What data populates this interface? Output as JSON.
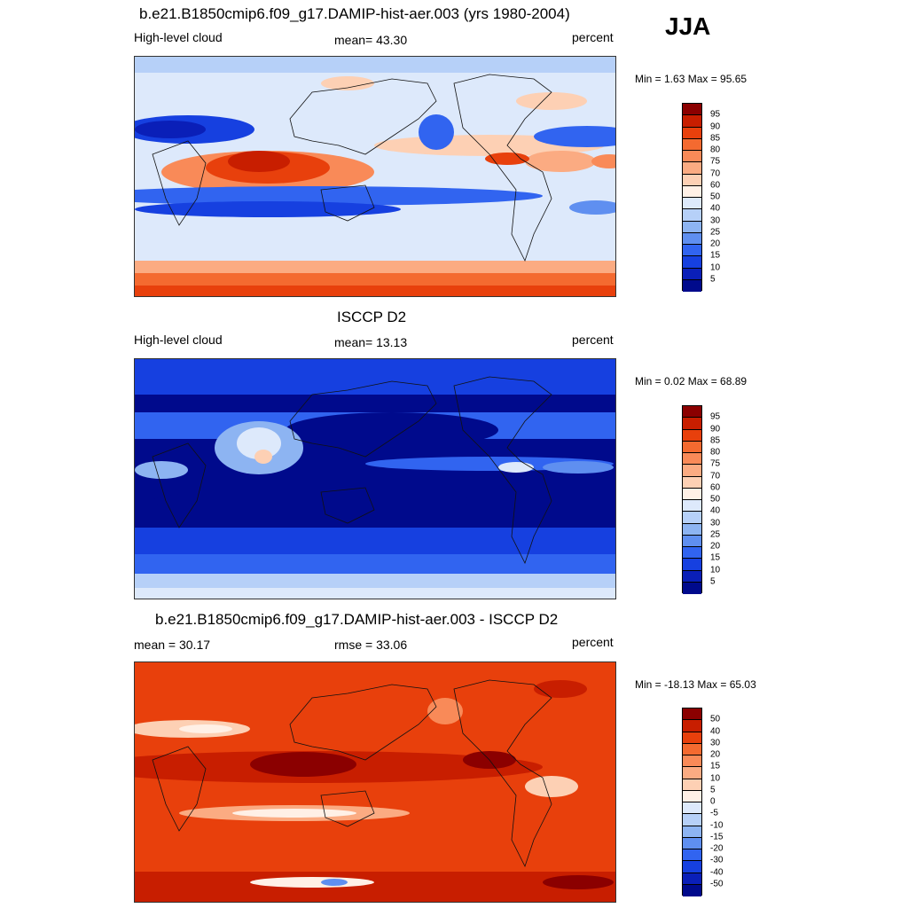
{
  "season": "JJA",
  "panels": [
    {
      "title": "b.e21.B1850cmip6.f09_g17.DAMIP-hist-aer.003 (yrs 1980-2004)",
      "left_label": "High-level cloud",
      "center_label": "mean=  43.30",
      "right_label": "percent",
      "minmax": "Min =   1.63 Max =  95.65",
      "colorbar": {
        "labels": [
          "95",
          "90",
          "85",
          "80",
          "75",
          "70",
          "60",
          "50",
          "40",
          "30",
          "25",
          "20",
          "15",
          "10",
          "5"
        ],
        "colors": [
          "#8b0000",
          "#c81e00",
          "#e8400c",
          "#f46a30",
          "#f98a58",
          "#fbab82",
          "#fdd0b4",
          "#fff0e6",
          "#dde9fb",
          "#b6d0f8",
          "#8db4f2",
          "#5f8ff0",
          "#3164f0",
          "#1640e0",
          "#0a1fb8",
          "#000a8c"
        ]
      }
    },
    {
      "title": "ISCCP D2",
      "left_label": "High-level cloud",
      "center_label": "mean=  13.13",
      "right_label": "percent",
      "minmax": "Min =   0.02 Max =  68.89",
      "colorbar": {
        "labels": [
          "95",
          "90",
          "85",
          "80",
          "75",
          "70",
          "60",
          "50",
          "40",
          "30",
          "25",
          "20",
          "15",
          "10",
          "5"
        ],
        "colors": [
          "#8b0000",
          "#c81e00",
          "#e8400c",
          "#f46a30",
          "#f98a58",
          "#fbab82",
          "#fdd0b4",
          "#fff0e6",
          "#dde9fb",
          "#b6d0f8",
          "#8db4f2",
          "#5f8ff0",
          "#3164f0",
          "#1640e0",
          "#0a1fb8",
          "#000a8c"
        ]
      }
    },
    {
      "title": "b.e21.B1850cmip6.f09_g17.DAMIP-hist-aer.003 - ISCCP D2",
      "left_label": "mean =  30.17",
      "center_label": "rmse =  33.06",
      "right_label": "percent",
      "minmax": "Min = -18.13 Max =  65.03",
      "colorbar": {
        "labels": [
          "50",
          "40",
          "30",
          "20",
          "15",
          "10",
          "5",
          "0",
          "-5",
          "-10",
          "-15",
          "-20",
          "-30",
          "-40",
          "-50"
        ],
        "colors": [
          "#8b0000",
          "#c81e00",
          "#e8400c",
          "#f46a30",
          "#f98a58",
          "#fbab82",
          "#fdd0b4",
          "#fff0e6",
          "#dde9fb",
          "#b6d0f8",
          "#8db4f2",
          "#5f8ff0",
          "#3164f0",
          "#1640e0",
          "#0a1fb8",
          "#000a8c"
        ]
      }
    }
  ]
}
